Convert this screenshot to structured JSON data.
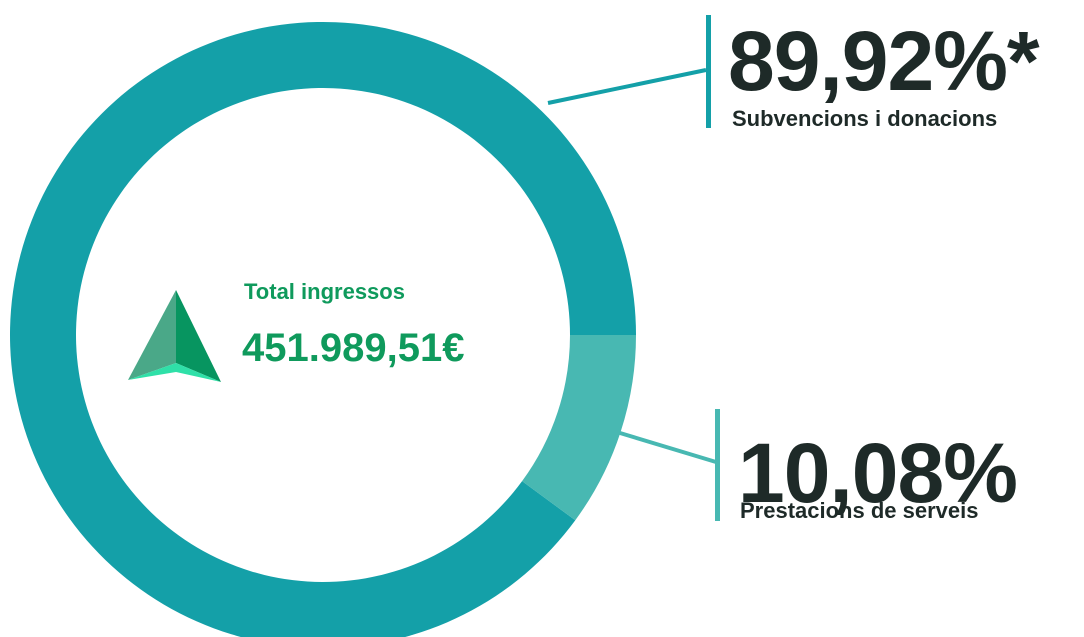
{
  "chart_data": {
    "type": "donut",
    "categories": [
      "Subvencions i donacions",
      "Prestacions de serveis"
    ],
    "values": [
      89.92,
      10.08
    ],
    "value_labels": [
      "89,92%*",
      "10,08%"
    ],
    "colors": [
      "#14a0a8",
      "#48b8b2"
    ],
    "center_title": "Total ingressos",
    "center_value": "451.989,51€"
  }
}
